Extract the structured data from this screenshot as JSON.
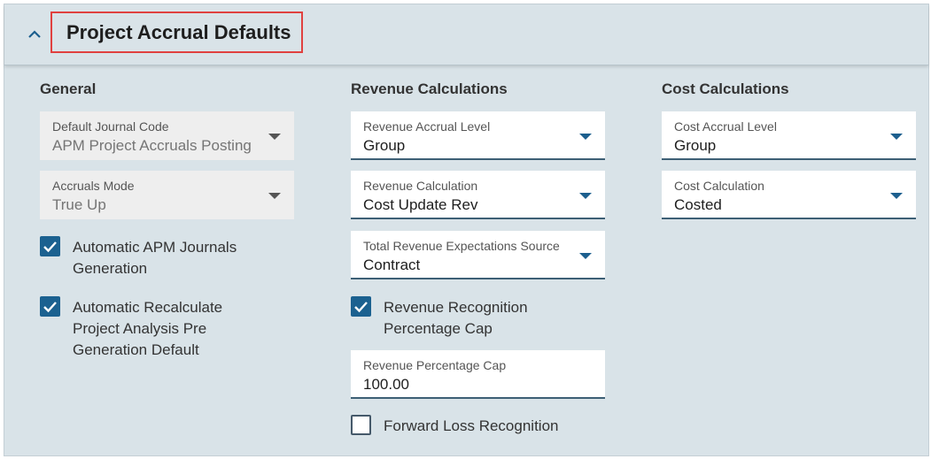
{
  "header": {
    "title": "Project Accrual Defaults"
  },
  "sections": [
    {
      "title": "General",
      "items": [
        {
          "kind": "select",
          "label": "Default Journal Code",
          "value": "APM Project Accruals Posting",
          "disabled": true
        },
        {
          "kind": "select",
          "label": "Accruals Mode",
          "value": "True Up",
          "disabled": true
        },
        {
          "kind": "checkbox",
          "label": "Automatic APM Journals Generation",
          "checked": true
        },
        {
          "kind": "checkbox",
          "label": "Automatic Recalculate Project Analysis Pre Generation Default",
          "checked": true
        }
      ]
    },
    {
      "title": "Revenue Calculations",
      "items": [
        {
          "kind": "select",
          "label": "Revenue Accrual Level",
          "value": "Group",
          "disabled": false
        },
        {
          "kind": "select",
          "label": "Revenue Calculation",
          "value": "Cost Update Rev",
          "disabled": false
        },
        {
          "kind": "select",
          "label": "Total Revenue Expectations Source",
          "value": "Contract",
          "disabled": false
        },
        {
          "kind": "checkbox",
          "label": "Revenue Recognition Percentage Cap",
          "checked": true
        },
        {
          "kind": "input",
          "label": "Revenue Percentage Cap",
          "value": "100.00",
          "disabled": false
        },
        {
          "kind": "checkbox",
          "label": "Forward Loss Recognition",
          "checked": false
        }
      ]
    },
    {
      "title": "Cost Calculations",
      "items": [
        {
          "kind": "select",
          "label": "Cost Accrual Level",
          "value": "Group",
          "disabled": false
        },
        {
          "kind": "select",
          "label": "Cost Calculation",
          "value": "Costed",
          "disabled": false
        }
      ]
    }
  ]
}
